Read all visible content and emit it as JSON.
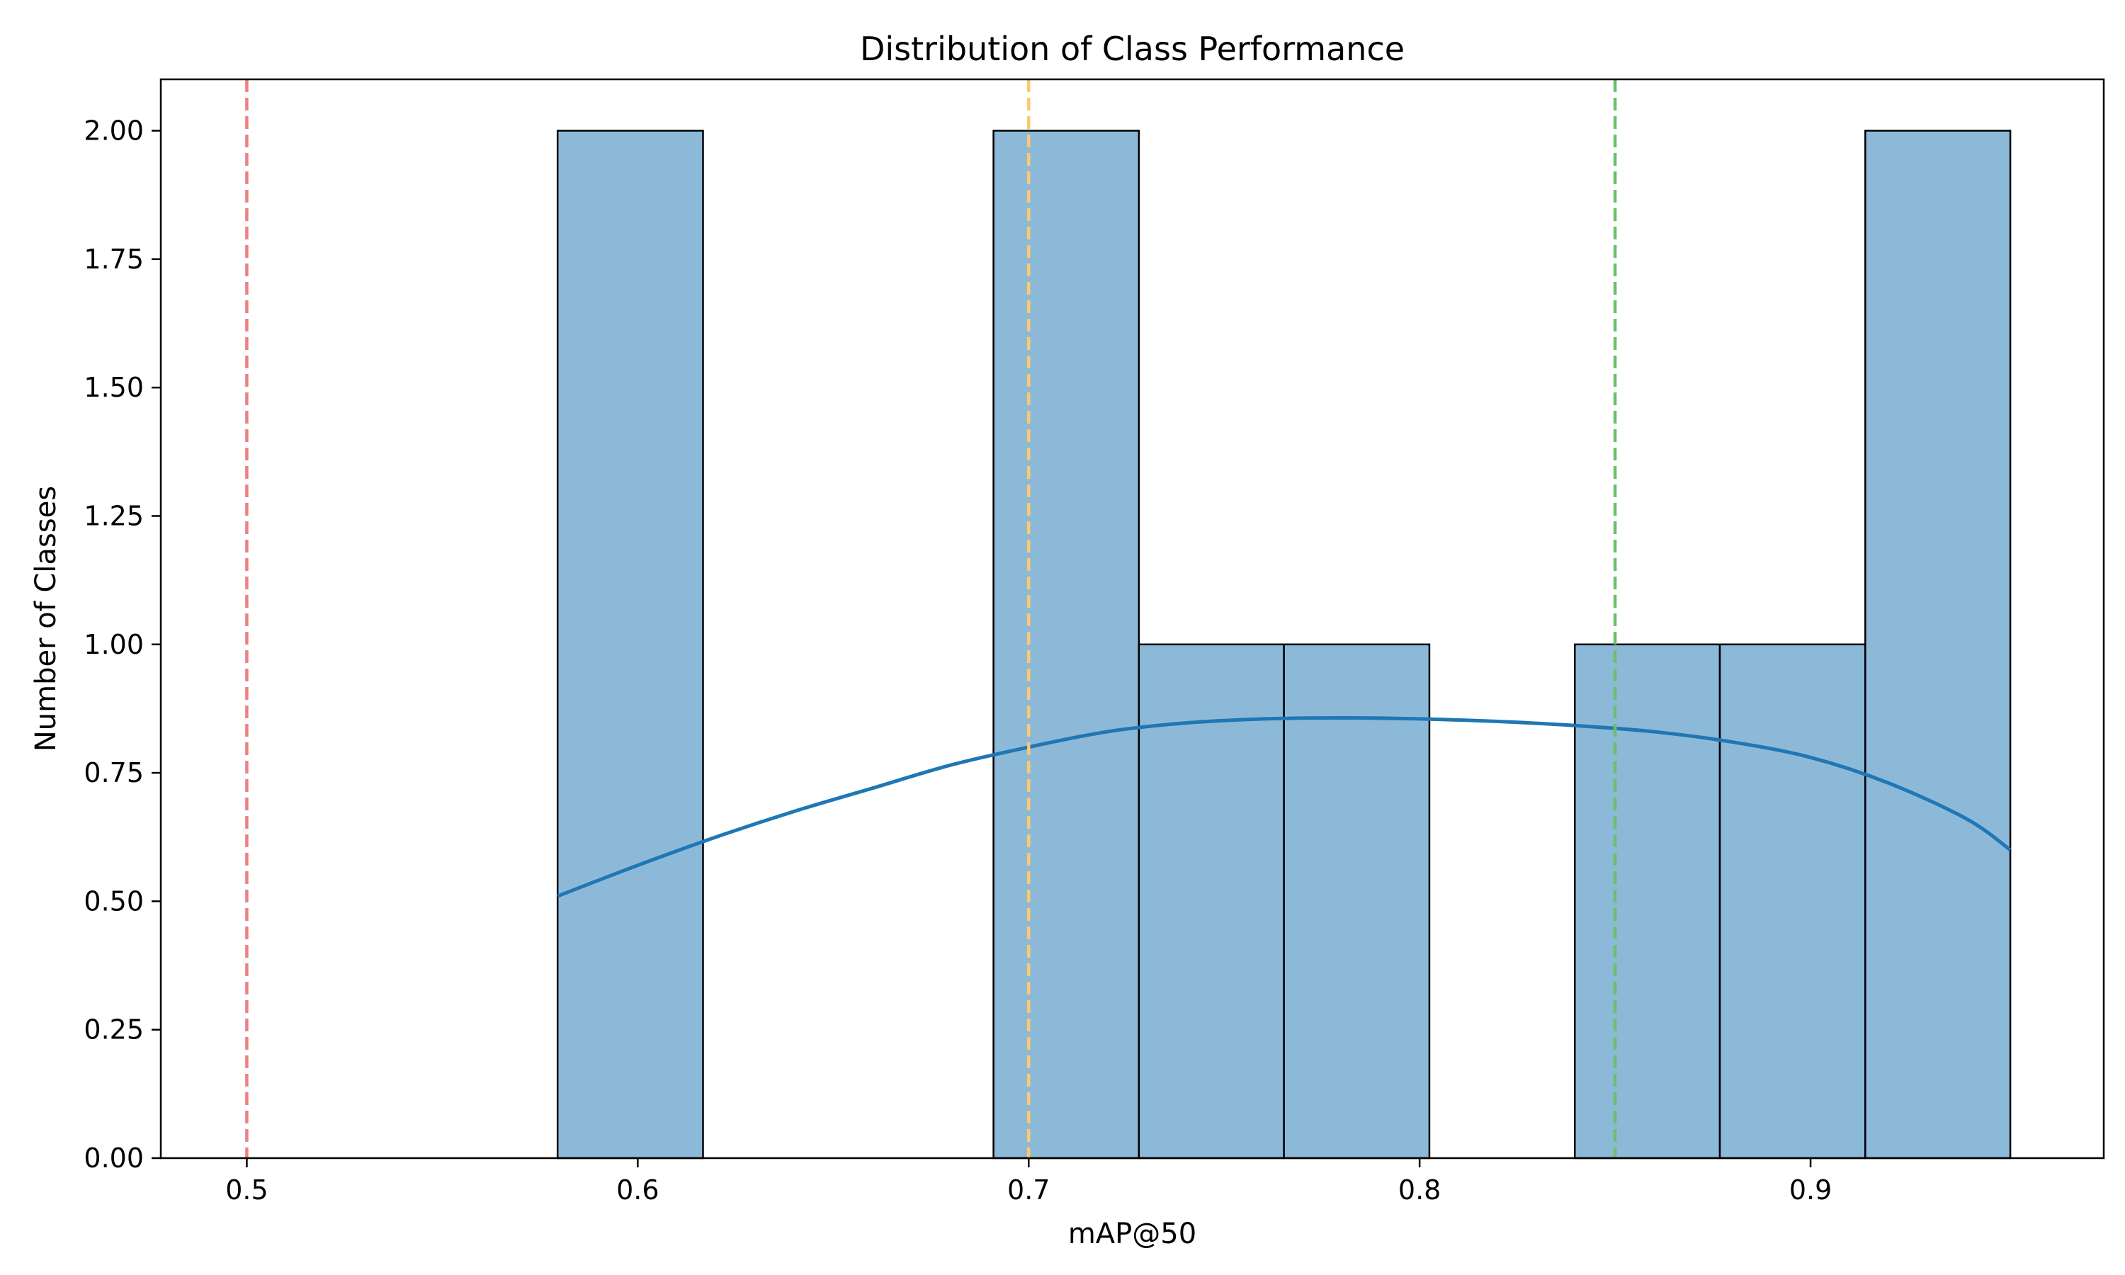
{
  "chart_data": {
    "type": "bar",
    "subtype": "histogram",
    "title": "Distribution of Class Performance",
    "xlabel": "mAP@50",
    "ylabel": "Number of Classes",
    "xlim": [
      0.478,
      0.975
    ],
    "ylim": [
      0,
      2.1
    ],
    "x_ticks": [
      0.5,
      0.6,
      0.7,
      0.8,
      0.9
    ],
    "y_ticks": [
      0.0,
      0.25,
      0.5,
      0.75,
      1.0,
      1.25,
      1.5,
      1.75,
      2.0
    ],
    "y_tick_format": 2,
    "x_tick_format": 1,
    "grid": false,
    "bin_edges": [
      0.5795,
      0.6167,
      0.6538,
      0.691,
      0.7282,
      0.7653,
      0.8025,
      0.8397,
      0.8768,
      0.914,
      0.9511
    ],
    "counts": [
      2,
      0,
      0,
      2,
      1,
      1,
      0,
      1,
      1,
      2
    ],
    "bar_color": "#8db9d9",
    "bar_edge_color": "#000000",
    "kde": {
      "color": "#1f77b4",
      "x": [
        0.5795,
        0.6,
        0.62,
        0.64,
        0.66,
        0.68,
        0.7,
        0.72,
        0.74,
        0.76,
        0.78,
        0.8,
        0.82,
        0.84,
        0.86,
        0.88,
        0.9,
        0.92,
        0.94,
        0.9511
      ],
      "y": [
        0.51,
        0.57,
        0.625,
        0.675,
        0.72,
        0.765,
        0.8,
        0.83,
        0.847,
        0.855,
        0.857,
        0.855,
        0.85,
        0.842,
        0.83,
        0.81,
        0.78,
        0.73,
        0.66,
        0.6
      ]
    },
    "reference_lines": [
      {
        "x": 0.5,
        "color": "#f08080",
        "style": "dashed"
      },
      {
        "x": 0.7,
        "color": "#fcc870",
        "style": "dashed"
      },
      {
        "x": 0.85,
        "color": "#6cbf6c",
        "style": "dashed"
      }
    ]
  }
}
